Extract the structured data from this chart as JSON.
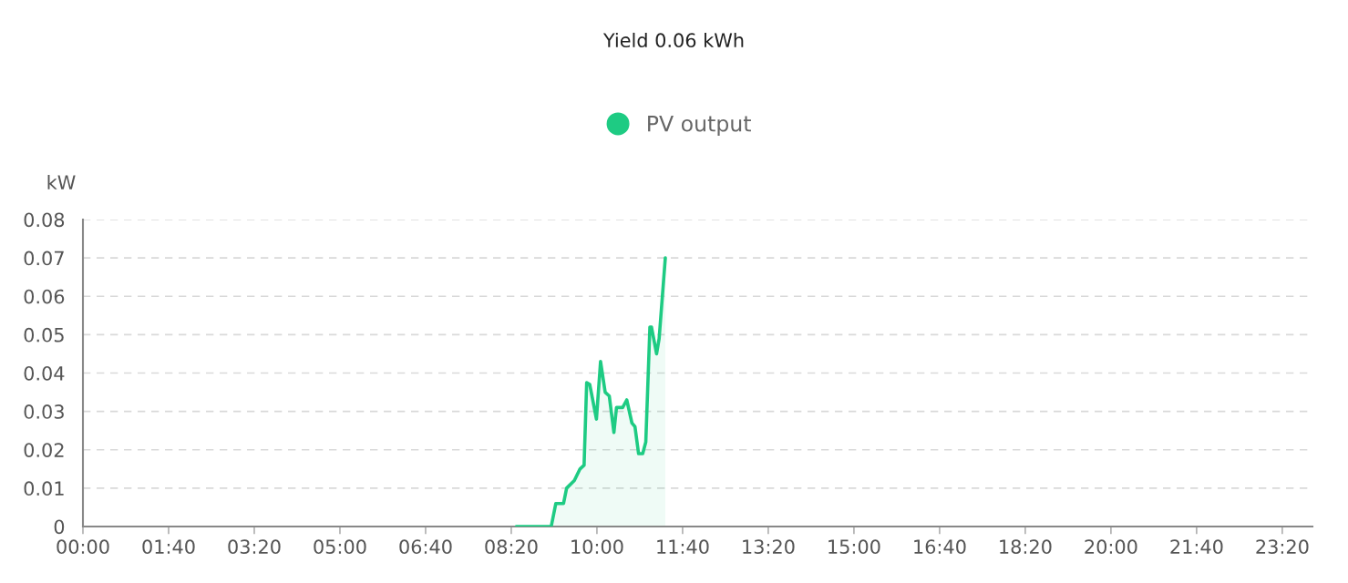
{
  "chart_data": {
    "type": "area",
    "title": "Yield 0.06 kWh",
    "ylabel": "kW",
    "x": [
      8.43,
      9.11,
      9.2,
      9.35,
      9.41,
      9.56,
      9.67,
      9.75,
      9.8,
      9.86,
      9.99,
      10.07,
      10.16,
      10.24,
      10.33,
      10.38,
      10.5,
      10.58,
      10.68,
      10.74,
      10.81,
      10.89,
      10.95,
      11.03,
      11.06,
      11.16,
      11.21,
      11.33
    ],
    "series": [
      {
        "name": "PV output",
        "color": "#1ecb83",
        "values": [
          0,
          0,
          0.006,
          0.006,
          0.01,
          0.012,
          0.015,
          0.016,
          0.0375,
          0.037,
          0.028,
          0.043,
          0.035,
          0.034,
          0.0245,
          0.031,
          0.031,
          0.033,
          0.027,
          0.026,
          0.019,
          0.019,
          0.022,
          0.052,
          0.052,
          0.045,
          0.049,
          0.07
        ]
      }
    ],
    "xlim": [
      0,
      23.92
    ],
    "xticks": [
      {
        "value": 0,
        "label": "00:00"
      },
      {
        "value": 1.6667,
        "label": "01:40"
      },
      {
        "value": 3.3333,
        "label": "03:20"
      },
      {
        "value": 5,
        "label": "05:00"
      },
      {
        "value": 6.6667,
        "label": "06:40"
      },
      {
        "value": 8.3333,
        "label": "08:20"
      },
      {
        "value": 10,
        "label": "10:00"
      },
      {
        "value": 11.6667,
        "label": "11:40"
      },
      {
        "value": 13.3333,
        "label": "13:20"
      },
      {
        "value": 15,
        "label": "15:00"
      },
      {
        "value": 16.6667,
        "label": "16:40"
      },
      {
        "value": 18.3333,
        "label": "18:20"
      },
      {
        "value": 20,
        "label": "20:00"
      },
      {
        "value": 21.6667,
        "label": "21:40"
      },
      {
        "value": 23.3333,
        "label": "23:20"
      }
    ],
    "ylim": [
      0,
      0.08
    ],
    "yticks": [
      0,
      0.01,
      0.02,
      0.03,
      0.04,
      0.05,
      0.06,
      0.07,
      0.08
    ],
    "grid": "y",
    "legend": "top",
    "marker": "none",
    "line_style": "solid"
  }
}
